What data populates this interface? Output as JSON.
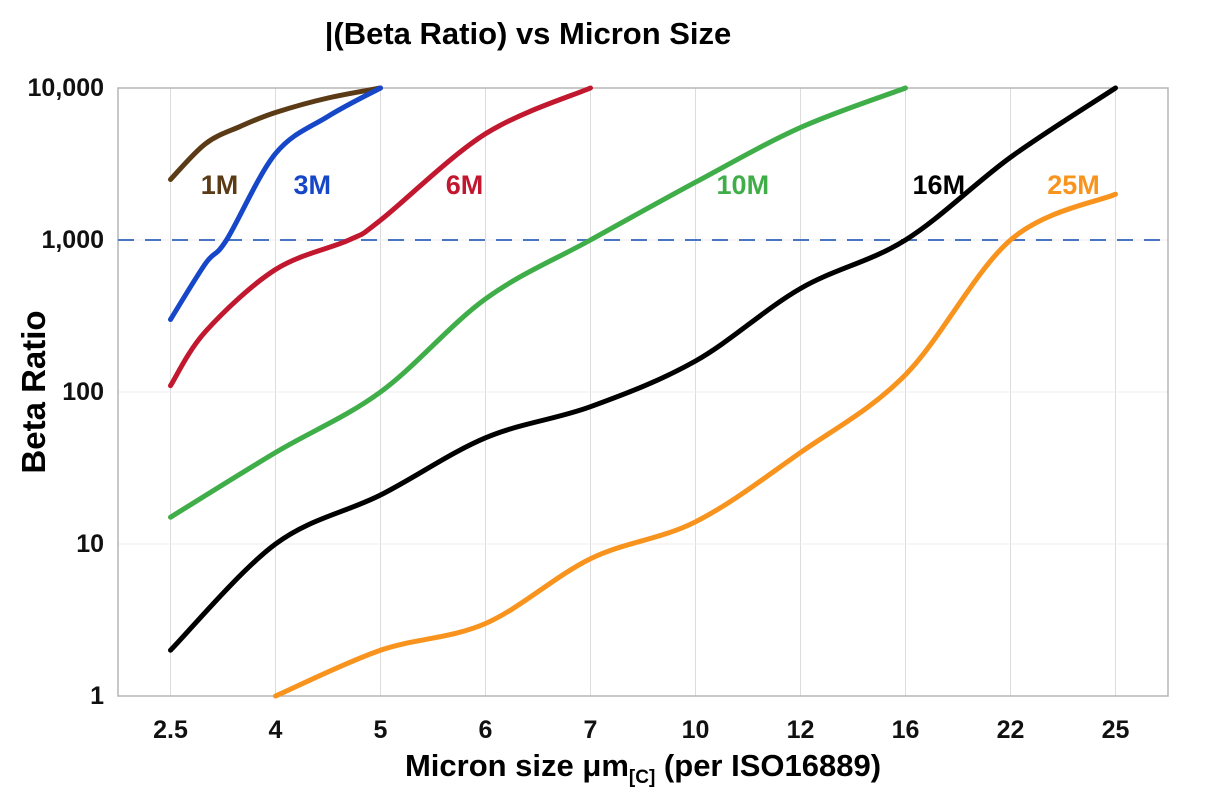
{
  "title": "|(Beta Ratio) vs Micron Size",
  "axes": {
    "y_label": "Beta Ratio",
    "x_label_main": "Micron size μm",
    "x_label_sub": "[C]",
    "x_label_rest": " (per ISO16889)"
  },
  "chart_data": {
    "type": "line",
    "title": "(Beta Ratio) vs Micron Size",
    "xlabel": "Micron size μm[C] (per ISO16889)",
    "ylabel": "Beta Ratio",
    "x_scale": "ordinal",
    "y_scale": "log",
    "grid": true,
    "legend": "inline-labels",
    "categories": [
      2.5,
      4,
      5,
      6,
      7,
      10,
      12,
      16,
      22,
      25
    ],
    "x_tick_labels": [
      "2.5",
      "4",
      "5",
      "6",
      "7",
      "10",
      "12",
      "16",
      "22",
      "25"
    ],
    "ylim": [
      1,
      10000
    ],
    "y_tick_values": [
      1,
      10,
      100,
      1000,
      10000
    ],
    "y_tick_labels": [
      "1",
      "10",
      "100",
      "1,000",
      "10,000"
    ],
    "reference_line": {
      "y": 1000,
      "style": "dashed",
      "color": "#4a74c4"
    },
    "series": [
      {
        "name": "1M",
        "color": "#5b3a16",
        "label": {
          "x": 3.2,
          "y": 2300
        },
        "points": [
          [
            2.5,
            2500
          ],
          [
            3,
            4300
          ],
          [
            3.5,
            5600
          ],
          [
            4,
            6900
          ],
          [
            4.5,
            8600
          ],
          [
            5,
            10000
          ]
        ]
      },
      {
        "name": "3M",
        "color": "#1647c8",
        "label": {
          "x": 4.35,
          "y": 2300
        },
        "points": [
          [
            2.5,
            300
          ],
          [
            3,
            700
          ],
          [
            3.3,
            1000
          ],
          [
            4,
            3700
          ],
          [
            4.5,
            6500
          ],
          [
            5,
            10000
          ]
        ]
      },
      {
        "name": "6M",
        "color": "#c2182f",
        "label": {
          "x": 5.8,
          "y": 2300
        },
        "points": [
          [
            2.5,
            110
          ],
          [
            3,
            250
          ],
          [
            4,
            640
          ],
          [
            4.7,
            1000
          ],
          [
            5,
            1350
          ],
          [
            6,
            5000
          ],
          [
            7,
            10000
          ]
        ]
      },
      {
        "name": "10M",
        "color": "#3fae49",
        "label": {
          "x": 10.9,
          "y": 2300
        },
        "points": [
          [
            2.5,
            15
          ],
          [
            4,
            40
          ],
          [
            5,
            100
          ],
          [
            6,
            410
          ],
          [
            7,
            1000
          ],
          [
            10,
            2400
          ],
          [
            12,
            5500
          ],
          [
            16,
            10000
          ]
        ]
      },
      {
        "name": "16M",
        "color": "#000000",
        "label": {
          "x": 17.9,
          "y": 2300
        },
        "points": [
          [
            2.5,
            2
          ],
          [
            4,
            10
          ],
          [
            5,
            21
          ],
          [
            6,
            50
          ],
          [
            7,
            80
          ],
          [
            10,
            160
          ],
          [
            12,
            480
          ],
          [
            16,
            1000
          ],
          [
            22,
            3500
          ],
          [
            25,
            10000
          ]
        ]
      },
      {
        "name": "25M",
        "color": "#f8941e",
        "label": {
          "x": 23.8,
          "y": 2300
        },
        "points": [
          [
            4,
            1
          ],
          [
            5,
            2
          ],
          [
            6,
            3
          ],
          [
            7,
            8
          ],
          [
            10,
            14
          ],
          [
            12,
            40
          ],
          [
            16,
            130
          ],
          [
            22,
            1000
          ],
          [
            25,
            2000
          ]
        ]
      }
    ]
  }
}
